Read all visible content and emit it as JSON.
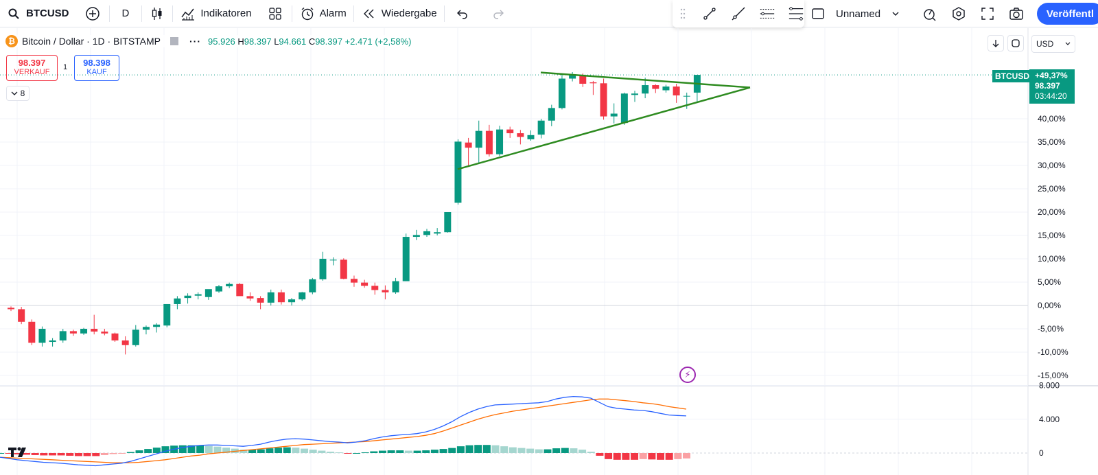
{
  "toolbar": {
    "symbol": "BTCUSD",
    "interval": "D",
    "indicators_label": "Indikatoren",
    "alarm_label": "Alarm",
    "replay_label": "Wiedergabe",
    "layout_name": "Unnamed",
    "publish_label": "Veröffentl"
  },
  "legend": {
    "title": "Bitcoin / Dollar · 1D · BITSTAMP",
    "logo_glyph": "₿",
    "open": "95.926",
    "high_key": "H",
    "high": "98.397",
    "low_key": "L",
    "low": "94.661",
    "close_key": "C",
    "close": "98.397",
    "change": "+2.471 (+2,58%)"
  },
  "trade": {
    "sell_price": "98.397",
    "sell_label": "VERKAUF",
    "spread": "1",
    "buy_price": "98.398",
    "buy_label": "KAUF"
  },
  "collapse_count": "8",
  "currency": "USD",
  "price_tag": {
    "symbol": "BTCUSD",
    "change_pct": "+49,37%",
    "price": "98.397",
    "countdown": "03:44:20"
  },
  "colors": {
    "up": "#089981",
    "down": "#f23645",
    "triangle": "#2e8b20",
    "macd": "#2962ff",
    "signal": "#ff6d00",
    "accent": "#2962ff"
  },
  "chart_data": {
    "type": "candlestick",
    "y_axis_ticks": [
      "40,00%",
      "35,00%",
      "30,00%",
      "25,00%",
      "20,00%",
      "15,00%",
      "10,00%",
      "5,00%",
      "0,00%",
      "-5,00%",
      "-10,00%",
      "-15,00%"
    ],
    "y_axis_values": [
      40,
      35,
      30,
      25,
      20,
      15,
      10,
      5,
      0,
      -5,
      -10,
      -15
    ],
    "ylim": [
      -16,
      50
    ],
    "candles_pct": [
      [
        -0.5,
        -0.2,
        -1.2,
        -0.8
      ],
      [
        -0.8,
        -0.3,
        -4.0,
        -3.5
      ],
      [
        -3.5,
        -3.0,
        -8.5,
        -8.0
      ],
      [
        -8.0,
        -4.5,
        -8.8,
        -5.0
      ],
      [
        -7.8,
        -7.0,
        -8.8,
        -7.5
      ],
      [
        -7.5,
        -5.0,
        -8.0,
        -5.5
      ],
      [
        -5.5,
        -5.2,
        -6.5,
        -6.0
      ],
      [
        -6.0,
        -4.8,
        -6.3,
        -5.0
      ],
      [
        -5.0,
        -2.0,
        -6.2,
        -5.6
      ],
      [
        -5.6,
        -5.0,
        -6.4,
        -6.0
      ],
      [
        -6.0,
        -5.8,
        -7.8,
        -7.5
      ],
      [
        -7.5,
        -6.6,
        -10.5,
        -8.5
      ],
      [
        -8.5,
        -4.2,
        -8.8,
        -5.2
      ],
      [
        -5.2,
        -4.3,
        -6.2,
        -4.6
      ],
      [
        -4.6,
        -3.8,
        -5.8,
        -4.1
      ],
      [
        -4.3,
        -0.6,
        -4.7,
        0.3
      ],
      [
        0.3,
        2.0,
        -0.8,
        1.5
      ],
      [
        1.6,
        2.6,
        0.4,
        2.1
      ],
      [
        2.1,
        2.8,
        1.3,
        2.4
      ],
      [
        1.8,
        3.2,
        1.2,
        3.5
      ],
      [
        3.0,
        4.4,
        2.7,
        4.1
      ],
      [
        4.1,
        4.9,
        3.7,
        4.6
      ],
      [
        4.6,
        4.8,
        2.3,
        2.0
      ],
      [
        2.0,
        2.8,
        1.0,
        1.5
      ],
      [
        1.6,
        2.0,
        -0.8,
        0.6
      ],
      [
        0.6,
        3.4,
        0.0,
        2.8
      ],
      [
        2.8,
        3.4,
        0.2,
        0.7
      ],
      [
        0.7,
        1.6,
        0.0,
        1.3
      ],
      [
        1.3,
        2.9,
        1.0,
        2.8
      ],
      [
        2.8,
        5.9,
        2.4,
        5.6
      ],
      [
        5.6,
        11.5,
        5.3,
        10.0
      ],
      [
        9.8,
        10.3,
        8.6,
        9.8
      ],
      [
        9.8,
        10.1,
        5.6,
        5.7
      ],
      [
        5.7,
        6.4,
        4.0,
        4.9
      ],
      [
        4.9,
        5.5,
        3.8,
        4.2
      ],
      [
        4.2,
        4.9,
        2.3,
        3.3
      ],
      [
        3.3,
        4.3,
        1.3,
        2.8
      ],
      [
        2.8,
        5.9,
        2.5,
        5.2
      ],
      [
        5.2,
        15.4,
        5.2,
        14.7
      ],
      [
        14.7,
        16.2,
        14.0,
        15.1
      ],
      [
        15.1,
        16.4,
        14.7,
        15.9
      ],
      [
        15.4,
        16.6,
        15.0,
        15.7
      ],
      [
        15.7,
        20.0,
        15.6,
        20.0
      ],
      [
        22.0,
        35.6,
        21.6,
        35.1
      ],
      [
        34.9,
        35.9,
        29.8,
        33.8
      ],
      [
        33.8,
        39.6,
        30.3,
        37.4
      ],
      [
        37.4,
        38.7,
        31.9,
        32.4
      ],
      [
        32.4,
        38.5,
        32.0,
        37.7
      ],
      [
        37.7,
        38.3,
        35.9,
        36.9
      ],
      [
        36.9,
        37.6,
        34.5,
        36.1
      ],
      [
        35.6,
        37.5,
        35.3,
        36.5
      ],
      [
        36.6,
        40.0,
        35.8,
        39.6
      ],
      [
        39.6,
        43.0,
        38.4,
        42.3
      ],
      [
        42.3,
        49.6,
        42.0,
        48.6
      ],
      [
        48.6,
        50.0,
        48.0,
        49.3
      ],
      [
        49.3,
        49.7,
        46.8,
        47.5
      ],
      [
        47.8,
        48.1,
        45.1,
        47.6
      ],
      [
        47.6,
        48.6,
        39.8,
        40.5
      ],
      [
        40.5,
        43.3,
        39.0,
        41.1
      ],
      [
        39.1,
        45.6,
        38.7,
        45.4
      ],
      [
        45.1,
        46.0,
        43.6,
        45.4
      ],
      [
        45.4,
        48.8,
        44.4,
        47.2
      ],
      [
        47.2,
        47.4,
        45.5,
        46.4
      ],
      [
        46.1,
        47.3,
        45.6,
        46.9
      ],
      [
        46.9,
        47.5,
        43.4,
        45.0
      ],
      [
        44.9,
        45.6,
        42.1,
        44.9
      ],
      [
        45.6,
        49.4,
        43.4,
        49.4
      ]
    ],
    "triangle_line_1": [
      [
        -0.5,
        49.9
      ],
      [
        1.1,
        46.7
      ]
    ],
    "triangle_line_2": [
      [
        -0.5,
        29.2
      ],
      [
        1.1,
        46.7
      ]
    ],
    "macd_axis_ticks": [
      "8.000",
      "4.000",
      "0"
    ],
    "macd_axis_values": [
      8000,
      4000,
      0
    ],
    "macd": [
      -500,
      -650,
      -800,
      -900,
      -1000,
      -1100,
      -1150,
      -1200,
      -1300,
      -1400,
      -1450,
      -1500,
      -1400,
      -1300,
      -1200,
      -1000,
      -700,
      -400,
      -100,
      200,
      450,
      650,
      800,
      900,
      950,
      950,
      900,
      850,
      800,
      900,
      1050,
      1300,
      1500,
      1650,
      1700,
      1650,
      1550,
      1450,
      1350,
      1300,
      1200,
      1300,
      1450,
      1700,
      1900,
      2050,
      2150,
      2200,
      2300,
      2500,
      2800,
      3200,
      3700,
      4300,
      4800,
      5200,
      5500,
      5700,
      5750,
      5800,
      5850,
      5900,
      5950,
      6100,
      6400,
      6600,
      6700,
      6650,
      6500,
      6000,
      5500,
      5300,
      5200,
      5100,
      5050,
      4900,
      4700,
      4500,
      4450,
      4400
    ],
    "signal": [
      -500,
      -550,
      -600,
      -650,
      -700,
      -750,
      -800,
      -850,
      -900,
      -950,
      -1000,
      -1050,
      -1100,
      -1150,
      -1150,
      -1150,
      -1100,
      -1000,
      -900,
      -800,
      -650,
      -500,
      -350,
      -250,
      -100,
      0,
      100,
      200,
      300,
      400,
      500,
      600,
      700,
      800,
      900,
      1000,
      1050,
      1100,
      1150,
      1200,
      1250,
      1300,
      1350,
      1450,
      1550,
      1650,
      1750,
      1850,
      1950,
      2100,
      2300,
      2600,
      2950,
      3300,
      3650,
      4000,
      4300,
      4550,
      4750,
      4950,
      5100,
      5250,
      5400,
      5550,
      5700,
      5850,
      6000,
      6150,
      6300,
      6400,
      6400,
      6300,
      6200,
      6100,
      5950,
      5850,
      5700,
      5500,
      5350,
      5200
    ]
  }
}
